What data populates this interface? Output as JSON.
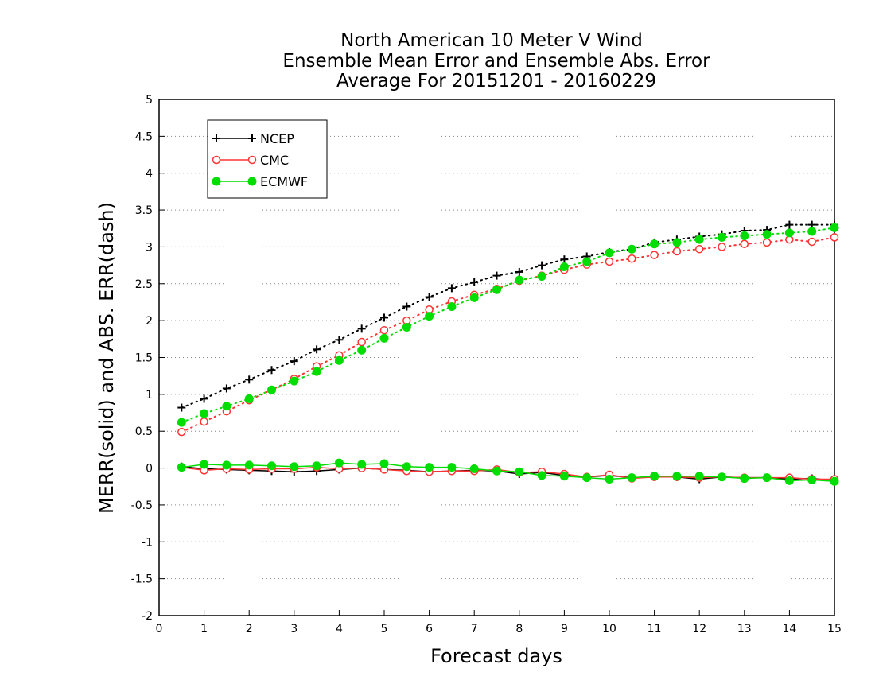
{
  "chart_data": {
    "type": "line",
    "title": [
      "North American 10 Meter V Wind",
      "Ensemble Mean Error and Ensemble Abs. Error",
      "Average For 20151201 - 20160229"
    ],
    "xlabel": "Forecast days",
    "ylabel": "MERR(solid) and ABS. ERR(dash)",
    "xlim": [
      0,
      15
    ],
    "ylim": [
      -2,
      5
    ],
    "xticks": [
      0,
      1,
      2,
      3,
      4,
      5,
      6,
      7,
      8,
      9,
      10,
      11,
      12,
      13,
      14,
      15
    ],
    "yticks": [
      -2,
      -1.5,
      -1,
      -0.5,
      0,
      0.5,
      1,
      1.5,
      2,
      2.5,
      3,
      3.5,
      4,
      4.5,
      5
    ],
    "grid": true,
    "legend_position": "top-left",
    "x": [
      0.5,
      1,
      1.5,
      2,
      2.5,
      3,
      3.5,
      4,
      4.5,
      5,
      5.5,
      6,
      6.5,
      7,
      7.5,
      8,
      8.5,
      9,
      9.5,
      10,
      10.5,
      11,
      11.5,
      12,
      12.5,
      13,
      13.5,
      14,
      14.5,
      15
    ],
    "series": [
      {
        "name": "NCEP",
        "color": "#000000",
        "marker": "plus",
        "abs_err": [
          0.82,
          0.94,
          1.08,
          1.2,
          1.33,
          1.45,
          1.61,
          1.74,
          1.89,
          2.04,
          2.19,
          2.32,
          2.44,
          2.52,
          2.61,
          2.66,
          2.75,
          2.83,
          2.87,
          2.93,
          2.97,
          3.06,
          3.1,
          3.14,
          3.17,
          3.22,
          3.23,
          3.3,
          3.3,
          3.3
        ],
        "mean_err": [
          0.02,
          -0.01,
          -0.02,
          -0.03,
          -0.04,
          -0.05,
          -0.04,
          -0.02,
          0.0,
          -0.02,
          -0.03,
          -0.05,
          -0.04,
          -0.03,
          -0.04,
          -0.08,
          -0.06,
          -0.1,
          -0.12,
          -0.1,
          -0.13,
          -0.12,
          -0.12,
          -0.15,
          -0.12,
          -0.13,
          -0.13,
          -0.15,
          -0.14,
          -0.17
        ]
      },
      {
        "name": "CMC",
        "color": "#ff3333",
        "marker": "open-circle",
        "abs_err": [
          0.49,
          0.63,
          0.77,
          0.92,
          1.06,
          1.21,
          1.38,
          1.53,
          1.71,
          1.87,
          2.0,
          2.15,
          2.26,
          2.35,
          2.43,
          2.54,
          2.61,
          2.69,
          2.76,
          2.8,
          2.84,
          2.89,
          2.94,
          2.97,
          3.0,
          3.04,
          3.06,
          3.1,
          3.07,
          3.13
        ],
        "mean_err": [
          0.01,
          -0.03,
          -0.01,
          -0.02,
          -0.01,
          -0.01,
          0.01,
          -0.01,
          0.0,
          -0.02,
          -0.04,
          -0.05,
          -0.04,
          -0.04,
          -0.02,
          -0.06,
          -0.05,
          -0.08,
          -0.12,
          -0.09,
          -0.14,
          -0.12,
          -0.12,
          -0.13,
          -0.12,
          -0.13,
          -0.13,
          -0.13,
          -0.15,
          -0.15
        ]
      },
      {
        "name": "ECMWF",
        "color": "#00dd00",
        "marker": "filled-circle",
        "abs_err": [
          0.62,
          0.74,
          0.84,
          0.94,
          1.06,
          1.18,
          1.31,
          1.46,
          1.6,
          1.76,
          1.91,
          2.06,
          2.19,
          2.31,
          2.42,
          2.55,
          2.6,
          2.73,
          2.8,
          2.92,
          2.97,
          3.04,
          3.06,
          3.1,
          3.13,
          3.15,
          3.17,
          3.19,
          3.21,
          3.26
        ],
        "mean_err": [
          0.01,
          0.05,
          0.04,
          0.04,
          0.03,
          0.02,
          0.03,
          0.07,
          0.05,
          0.06,
          0.02,
          0.01,
          0.01,
          -0.01,
          -0.04,
          -0.05,
          -0.1,
          -0.11,
          -0.13,
          -0.15,
          -0.13,
          -0.11,
          -0.11,
          -0.11,
          -0.12,
          -0.14,
          -0.13,
          -0.17,
          -0.16,
          -0.18
        ]
      }
    ]
  }
}
